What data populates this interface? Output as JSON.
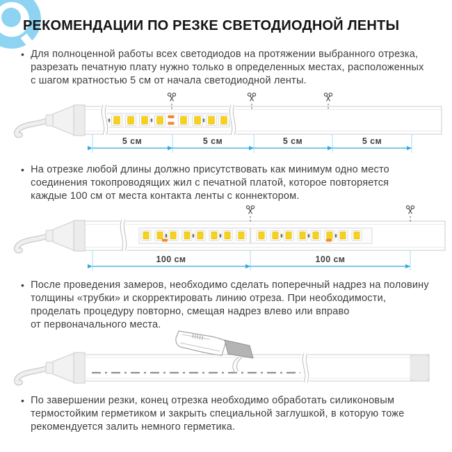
{
  "header": {
    "title": "РЕКОМЕНДАЦИИ ПО РЕЗКЕ СВЕТОДИОДНОЙ ЛЕНТЫ"
  },
  "icons": {
    "bullet": "•",
    "scissors": "✂"
  },
  "colors": {
    "logo_blue": "#8ED3F2",
    "accent_blue": "#2FA9E0",
    "tick_blue": "#A5DFF7",
    "led_yellow": "#F6D21F",
    "pad_orange": "#F08A2C",
    "text": "#3D3D3D"
  },
  "bullets": [
    {
      "text": "Для полноценной работы всех светодиодов на протяжении выбранного отрезка,\nразрезать печатную плату нужно только в определенных местах, расположенных\nс шагом кратностью 5 см от начала светодиодной ленты."
    },
    {
      "text": "На отрезке любой длины должно присутствовать как минимум одно место\nсоединения токопроводящих жил с печатной платой, которое повторяется\nкаждые 100 см от места контакта ленты с коннектором."
    },
    {
      "text": "После проведения замеров, необходимо сделать поперечный надрез на половину\nтолщины «трубки» и скорректировать линию отреза. При необходимости,\nпроделать процедуру повторно, смещая надрез влево или вправо\nот первоначального места."
    },
    {
      "text": "По завершении резки, конец отрезка необходимо обработать силиконовым\nтермостойким герметиком и закрыть специальной заглушкой, в которую тоже\nрекомендуется залить немного герметика."
    }
  ],
  "diagram_5cm": {
    "segment_labels": [
      "5 см",
      "5 см",
      "5 см",
      "5 см"
    ],
    "led_count": 8,
    "cut_points": 3
  },
  "diagram_100cm": {
    "segment_labels": [
      "100 см",
      "100 см"
    ],
    "led_count": 16,
    "cut_points": 2
  }
}
